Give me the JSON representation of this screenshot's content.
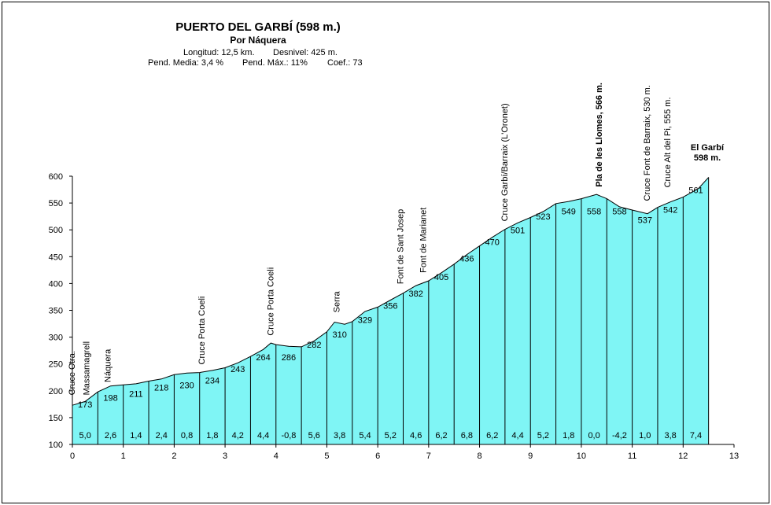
{
  "chart_data": {
    "type": "area",
    "title": "PUERTO DEL GARBÍ (598 m.)",
    "subtitle": "Por Náquera",
    "info_line1": [
      "Longitud: 12,5 km.",
      "Desnivel: 425 m."
    ],
    "info_line2": [
      "Pend. Media: 3,4 %",
      "Pend. Máx.: 11%",
      "Coef.: 73"
    ],
    "xlim": [
      0,
      13
    ],
    "ylim": [
      100,
      600
    ],
    "x_ticks": [
      "0",
      "1",
      "2",
      "3",
      "4",
      "5",
      "6",
      "7",
      "8",
      "9",
      "10",
      "11",
      "12",
      "13"
    ],
    "y_ticks": [
      "100",
      "150",
      "200",
      "250",
      "300",
      "350",
      "400",
      "450",
      "500",
      "550",
      "600"
    ],
    "profile": [
      [
        0,
        173
      ],
      [
        0.25,
        180
      ],
      [
        0.5,
        198
      ],
      [
        0.75,
        209
      ],
      [
        1,
        211
      ],
      [
        1.25,
        213
      ],
      [
        1.5,
        218
      ],
      [
        1.75,
        222
      ],
      [
        2,
        230
      ],
      [
        2.25,
        233
      ],
      [
        2.5,
        234
      ],
      [
        2.75,
        238
      ],
      [
        3,
        243
      ],
      [
        3.25,
        252
      ],
      [
        3.5,
        264
      ],
      [
        3.75,
        277
      ],
      [
        3.9,
        289
      ],
      [
        4,
        286
      ],
      [
        4.25,
        283
      ],
      [
        4.5,
        282
      ],
      [
        4.75,
        293
      ],
      [
        5,
        310
      ],
      [
        5.15,
        328
      ],
      [
        5.35,
        324
      ],
      [
        5.5,
        329
      ],
      [
        5.75,
        348
      ],
      [
        6,
        356
      ],
      [
        6.25,
        369
      ],
      [
        6.5,
        382
      ],
      [
        6.75,
        396
      ],
      [
        7,
        405
      ],
      [
        7.25,
        420
      ],
      [
        7.5,
        436
      ],
      [
        7.75,
        454
      ],
      [
        8,
        470
      ],
      [
        8.25,
        486
      ],
      [
        8.5,
        501
      ],
      [
        8.75,
        513
      ],
      [
        9,
        523
      ],
      [
        9.25,
        534
      ],
      [
        9.5,
        549
      ],
      [
        9.75,
        553
      ],
      [
        10,
        558
      ],
      [
        10.3,
        566
      ],
      [
        10.5,
        558
      ],
      [
        10.75,
        543
      ],
      [
        11,
        537
      ],
      [
        11.3,
        530
      ],
      [
        11.5,
        542
      ],
      [
        11.75,
        552
      ],
      [
        12,
        561
      ],
      [
        12.3,
        577
      ],
      [
        12.5,
        598
      ]
    ],
    "segment_bounds": [
      0,
      0.5,
      1,
      1.5,
      2,
      2.5,
      3,
      3.5,
      4,
      4.5,
      5,
      5.5,
      6,
      6.5,
      7,
      7.5,
      8,
      8.5,
      9,
      9.5,
      10,
      10.5,
      11,
      11.5,
      12,
      12.5
    ],
    "altitude_labels": [
      "173",
      "198",
      "211",
      "218",
      "230",
      "234",
      "243",
      "264",
      "286",
      "282",
      "310",
      "329",
      "356",
      "382",
      "405",
      "436",
      "470",
      "501",
      "523",
      "549",
      "558",
      "558",
      "537",
      "542",
      "561"
    ],
    "gradient_labels": [
      "5,0",
      "2,6",
      "1,4",
      "2,4",
      "0,8",
      "1,8",
      "4,2",
      "4,4",
      "-0,8",
      "5,6",
      "3,8",
      "5,4",
      "5,2",
      "4,6",
      "6,2",
      "6,8",
      "6,2",
      "4,4",
      "5,2",
      "1,8",
      "0,0",
      "-4,2",
      "1,0",
      "3,8",
      "7,4"
    ],
    "annotations": [
      {
        "text": "Cruce Ctra.",
        "x": 0.05,
        "y": 186,
        "bold": false
      },
      {
        "text": "Massamagrell",
        "x": 0.33,
        "y": 186,
        "bold": false
      },
      {
        "text": "Náquera",
        "x": 0.75,
        "y": 210,
        "bold": false
      },
      {
        "text": "Cruce Porta Coeli",
        "x": 2.6,
        "y": 243,
        "bold": false
      },
      {
        "text": "Cruce Porta Coeli",
        "x": 3.95,
        "y": 297,
        "bold": false
      },
      {
        "text": "Serra",
        "x": 5.25,
        "y": 340,
        "bold": false
      },
      {
        "text": "Font de Sant Josep",
        "x": 6.5,
        "y": 393,
        "bold": false
      },
      {
        "text": "Font de Marianet",
        "x": 6.95,
        "y": 414,
        "bold": false
      },
      {
        "text": "Cruce Garbí/Barraix (L'Oronet)",
        "x": 8.55,
        "y": 510,
        "bold": false
      },
      {
        "text": "Pla de les Llomes, 566 m.",
        "x": 10.4,
        "y": 574,
        "bold": true
      },
      {
        "text": "Cruce Font de Barraix, 530 m.",
        "x": 11.35,
        "y": 548,
        "bold": false
      },
      {
        "text": "Cruce Alt del Pi, 555 m.",
        "x": 11.75,
        "y": 573,
        "bold": false
      }
    ],
    "summit_label": [
      "El Garbí",
      "598 m."
    ],
    "colors": {
      "fill": "#7ff5f5",
      "line": "#000000",
      "segment_line": "#000000"
    }
  }
}
